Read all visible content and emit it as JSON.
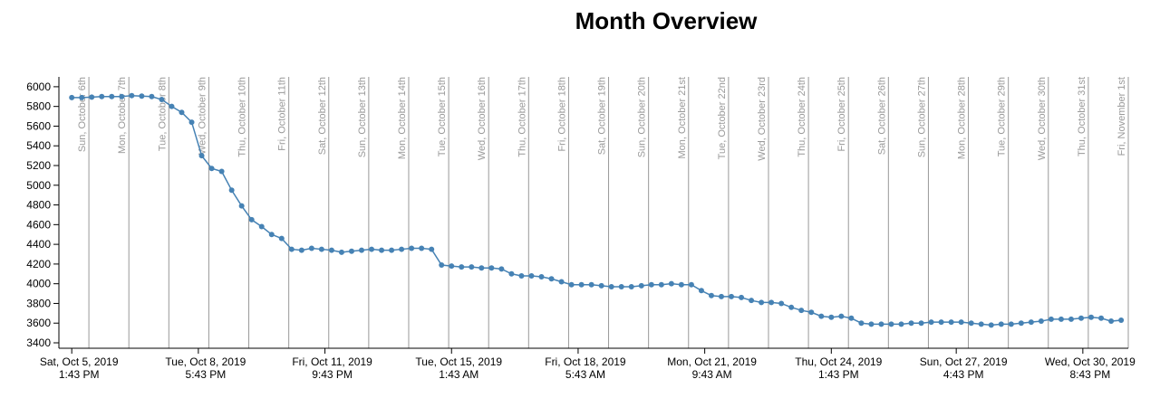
{
  "chart_data": {
    "type": "line",
    "title": "Month Overview",
    "color": "#4682b4",
    "xlim": [
      "2019-10-05 06:00",
      "2019-11-01 00:00"
    ],
    "ylim": [
      3345,
      6100
    ],
    "yticks": [
      3400,
      3600,
      3800,
      4000,
      4200,
      4400,
      4600,
      4800,
      5000,
      5200,
      5400,
      5600,
      5800,
      6000
    ],
    "xticks": [
      {
        "value": "2019-10-05 13:43",
        "label": [
          "Sat, Oct 5, 2019",
          "1:43 PM"
        ]
      },
      {
        "value": "2019-10-08 17:43",
        "label": [
          "Tue, Oct 8, 2019",
          "5:43 PM"
        ]
      },
      {
        "value": "2019-10-11 21:43",
        "label": [
          "Fri, Oct 11, 2019",
          "9:43 PM"
        ]
      },
      {
        "value": "2019-10-15 01:43",
        "label": [
          "Tue, Oct 15, 2019",
          "1:43 AM"
        ]
      },
      {
        "value": "2019-10-18 05:43",
        "label": [
          "Fri, Oct 18, 2019",
          "5:43 AM"
        ]
      },
      {
        "value": "2019-10-21 09:43",
        "label": [
          "Mon, Oct 21, 2019",
          "9:43 AM"
        ]
      },
      {
        "value": "2019-10-24 13:43",
        "label": [
          "Thu, Oct 24, 2019",
          "1:43 PM"
        ]
      },
      {
        "value": "2019-10-27 16:43",
        "label": [
          "Sun, Oct 27, 2019",
          "4:43 PM"
        ]
      },
      {
        "value": "2019-10-30 20:43",
        "label": [
          "Wed, Oct 30, 2019",
          "8:43 PM"
        ]
      }
    ],
    "day_markers": [
      {
        "value": "2019-10-06 00:00",
        "label": "Sun, October 6th"
      },
      {
        "value": "2019-10-07 00:00",
        "label": "Mon, October 7th"
      },
      {
        "value": "2019-10-08 00:00",
        "label": "Tue, October 8th"
      },
      {
        "value": "2019-10-09 00:00",
        "label": "Wed, October 9th"
      },
      {
        "value": "2019-10-10 00:00",
        "label": "Thu, October 10th"
      },
      {
        "value": "2019-10-11 00:00",
        "label": "Fri, October 11th"
      },
      {
        "value": "2019-10-12 00:00",
        "label": "Sat, October 12th"
      },
      {
        "value": "2019-10-13 00:00",
        "label": "Sun, October 13th"
      },
      {
        "value": "2019-10-14 00:00",
        "label": "Mon, October 14th"
      },
      {
        "value": "2019-10-15 00:00",
        "label": "Tue, October 15th"
      },
      {
        "value": "2019-10-16 00:00",
        "label": "Wed, October 16th"
      },
      {
        "value": "2019-10-17 00:00",
        "label": "Thu, October 17th"
      },
      {
        "value": "2019-10-18 00:00",
        "label": "Fri, October 18th"
      },
      {
        "value": "2019-10-19 00:00",
        "label": "Sat, October 19th"
      },
      {
        "value": "2019-10-20 00:00",
        "label": "Sun, October 20th"
      },
      {
        "value": "2019-10-21 00:00",
        "label": "Mon, October 21st"
      },
      {
        "value": "2019-10-22 00:00",
        "label": "Tue, October 22nd"
      },
      {
        "value": "2019-10-23 00:00",
        "label": "Wed, October 23rd"
      },
      {
        "value": "2019-10-24 00:00",
        "label": "Thu, October 24th"
      },
      {
        "value": "2019-10-25 00:00",
        "label": "Fri, October 25th"
      },
      {
        "value": "2019-10-26 00:00",
        "label": "Sat, October 26th"
      },
      {
        "value": "2019-10-27 00:00",
        "label": "Sun, October 27th"
      },
      {
        "value": "2019-10-28 00:00",
        "label": "Mon, October 28th"
      },
      {
        "value": "2019-10-29 00:00",
        "label": "Tue, October 29th"
      },
      {
        "value": "2019-10-30 00:00",
        "label": "Wed, October 30th"
      },
      {
        "value": "2019-10-31 00:00",
        "label": "Thu, October 31st"
      },
      {
        "value": "2019-11-01 00:00",
        "label": "Fri, November 1st"
      }
    ],
    "x": [
      "2019-10-05 13:43",
      "2019-10-05 19:43",
      "2019-10-06 01:43",
      "2019-10-06 07:43",
      "2019-10-06 13:43",
      "2019-10-06 19:43",
      "2019-10-07 01:43",
      "2019-10-07 07:43",
      "2019-10-07 13:43",
      "2019-10-07 19:43",
      "2019-10-08 01:43",
      "2019-10-08 07:43",
      "2019-10-08 13:43",
      "2019-10-08 19:43",
      "2019-10-09 01:43",
      "2019-10-09 07:43",
      "2019-10-09 13:43",
      "2019-10-09 19:43",
      "2019-10-10 01:43",
      "2019-10-10 07:43",
      "2019-10-10 13:43",
      "2019-10-10 19:43",
      "2019-10-11 01:43",
      "2019-10-11 07:43",
      "2019-10-11 13:43",
      "2019-10-11 19:43",
      "2019-10-12 01:43",
      "2019-10-12 07:43",
      "2019-10-12 13:43",
      "2019-10-12 19:43",
      "2019-10-13 01:43",
      "2019-10-13 07:43",
      "2019-10-13 13:43",
      "2019-10-13 19:43",
      "2019-10-14 01:43",
      "2019-10-14 07:43",
      "2019-10-14 13:43",
      "2019-10-14 19:43",
      "2019-10-15 01:43",
      "2019-10-15 07:43",
      "2019-10-15 13:43",
      "2019-10-15 19:43",
      "2019-10-16 01:43",
      "2019-10-16 07:43",
      "2019-10-16 13:43",
      "2019-10-16 19:43",
      "2019-10-17 01:43",
      "2019-10-17 07:43",
      "2019-10-17 13:43",
      "2019-10-17 19:43",
      "2019-10-18 01:43",
      "2019-10-18 07:43",
      "2019-10-18 13:43",
      "2019-10-18 19:43",
      "2019-10-19 01:43",
      "2019-10-19 07:43",
      "2019-10-19 13:43",
      "2019-10-19 19:43",
      "2019-10-20 01:43",
      "2019-10-20 07:43",
      "2019-10-20 13:43",
      "2019-10-20 19:43",
      "2019-10-21 01:43",
      "2019-10-21 07:43",
      "2019-10-21 13:43",
      "2019-10-21 19:43",
      "2019-10-22 01:43",
      "2019-10-22 07:43",
      "2019-10-22 13:43",
      "2019-10-22 19:43",
      "2019-10-23 01:43",
      "2019-10-23 07:43",
      "2019-10-23 13:43",
      "2019-10-23 19:43",
      "2019-10-24 01:43",
      "2019-10-24 07:43",
      "2019-10-24 13:43",
      "2019-10-24 19:43",
      "2019-10-25 01:43",
      "2019-10-25 07:43",
      "2019-10-25 13:43",
      "2019-10-25 19:43",
      "2019-10-26 01:43",
      "2019-10-26 07:43",
      "2019-10-26 13:43",
      "2019-10-26 19:43",
      "2019-10-27 01:43",
      "2019-10-27 07:43",
      "2019-10-27 13:43",
      "2019-10-27 19:43",
      "2019-10-28 01:43",
      "2019-10-28 07:43",
      "2019-10-28 13:43",
      "2019-10-28 19:43",
      "2019-10-29 01:43",
      "2019-10-29 07:43",
      "2019-10-29 13:43",
      "2019-10-29 19:43",
      "2019-10-30 01:43",
      "2019-10-30 07:43",
      "2019-10-30 13:43",
      "2019-10-30 19:43",
      "2019-10-31 01:43",
      "2019-10-31 07:43",
      "2019-10-31 13:43",
      "2019-10-31 19:43"
    ],
    "values": [
      5890,
      5890,
      5895,
      5900,
      5900,
      5900,
      5910,
      5905,
      5900,
      5870,
      5800,
      5740,
      5640,
      5300,
      5170,
      5140,
      4950,
      4790,
      4650,
      4580,
      4500,
      4460,
      4350,
      4340,
      4360,
      4350,
      4340,
      4320,
      4330,
      4340,
      4350,
      4340,
      4340,
      4350,
      4360,
      4360,
      4350,
      4190,
      4180,
      4170,
      4170,
      4160,
      4160,
      4150,
      4100,
      4080,
      4080,
      4070,
      4050,
      4020,
      3990,
      3990,
      3990,
      3980,
      3970,
      3970,
      3970,
      3980,
      3990,
      3990,
      4000,
      3990,
      3990,
      3930,
      3880,
      3870,
      3870,
      3860,
      3830,
      3810,
      3810,
      3800,
      3760,
      3730,
      3710,
      3670,
      3660,
      3670,
      3650,
      3600,
      3590,
      3590,
      3590,
      3590,
      3600,
      3600,
      3610,
      3610,
      3610,
      3610,
      3600,
      3590,
      3580,
      3590,
      3590,
      3600,
      3610,
      3620,
      3640,
      3640,
      3640,
      3650,
      3660,
      3650,
      3620,
      3630
    ]
  }
}
